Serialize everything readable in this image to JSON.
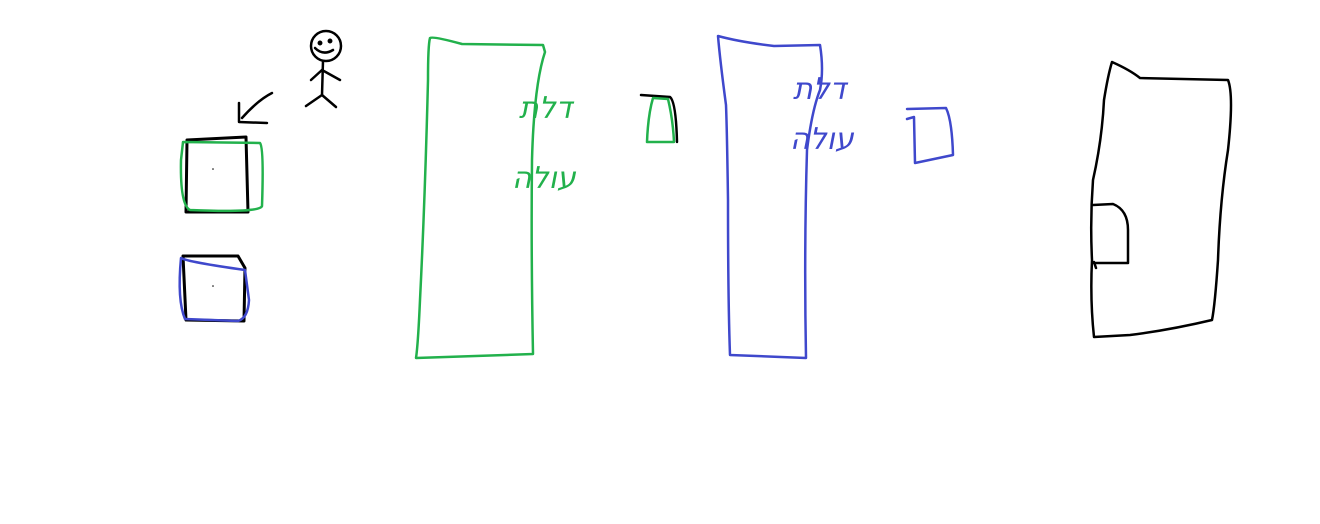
{
  "colors": {
    "black": "#000000",
    "green": "#22b14c",
    "blue": "#3f48cc",
    "background": "#ffffff"
  },
  "labels": {
    "green_door": {
      "line1": "דלת",
      "line2": "עולה",
      "color": "green"
    },
    "blue_door": {
      "line1": "דלת",
      "line2": "עולה",
      "color": "blue"
    }
  },
  "icons": [
    "stick-figure-icon",
    "arrow-icon"
  ]
}
